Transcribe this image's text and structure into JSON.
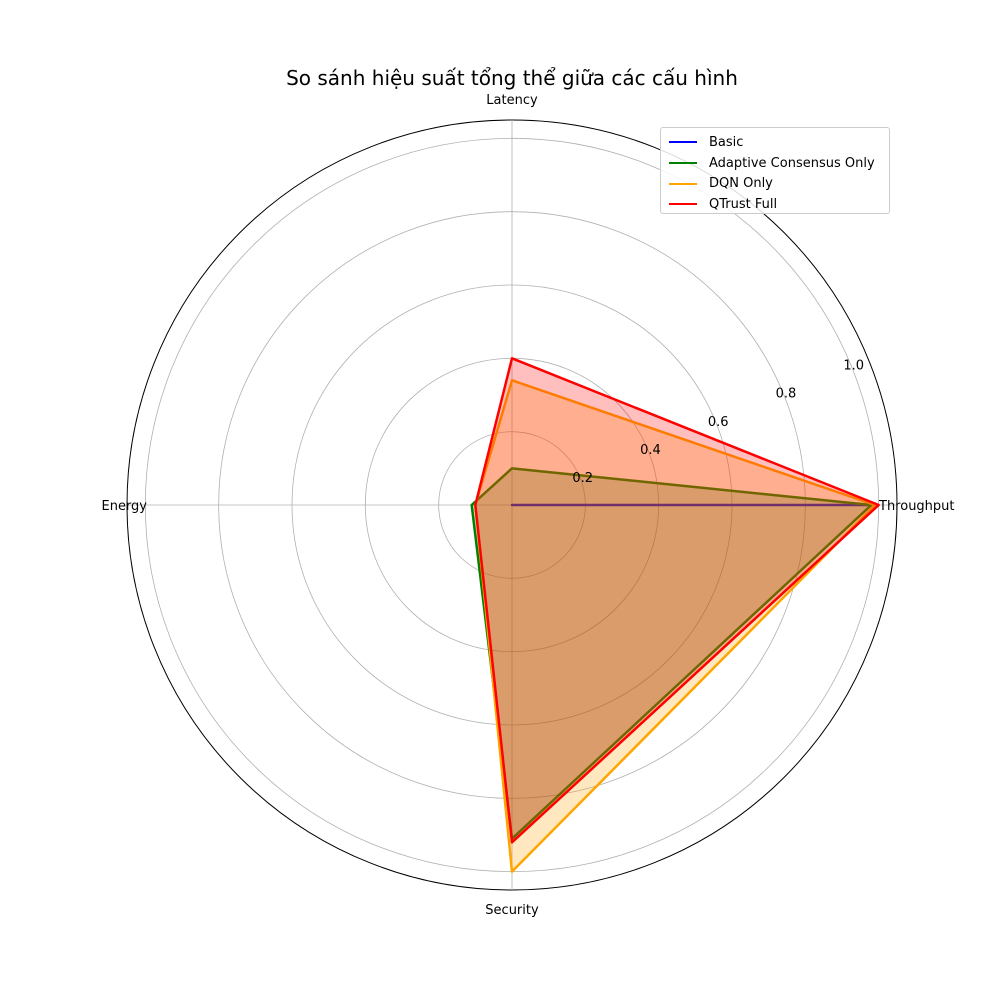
{
  "chart_data": {
    "type": "radar",
    "title": "So sánh hiệu suất tổng thể giữa các cấu hình",
    "axes": [
      "Throughput",
      "Latency",
      "Energy",
      "Security"
    ],
    "radial_ticks": [
      "0.2",
      "0.4",
      "0.6",
      "0.8",
      "1.0"
    ],
    "radial_tick_values": [
      0.2,
      0.4,
      0.6,
      0.8,
      1.0
    ],
    "rlim": [
      0,
      1.05
    ],
    "grid": true,
    "legend_position": "top-right",
    "series": [
      {
        "name": "Basic",
        "color": "#0000ff",
        "fill": "#0000ff",
        "values": [
          0.97,
          0.0,
          0.0,
          0.0
        ]
      },
      {
        "name": "Adaptive Consensus Only",
        "color": "#008000",
        "fill": "#008000",
        "values": [
          0.98,
          0.1,
          0.11,
          0.91
        ]
      },
      {
        "name": "DQN Only",
        "color": "#ffa500",
        "fill": "#ffa500",
        "values": [
          0.99,
          0.34,
          0.1,
          1.0
        ]
      },
      {
        "name": "QTrust Full",
        "color": "#ff0000",
        "fill": "#ff0000",
        "values": [
          1.0,
          0.4,
          0.1,
          0.92
        ]
      }
    ]
  }
}
